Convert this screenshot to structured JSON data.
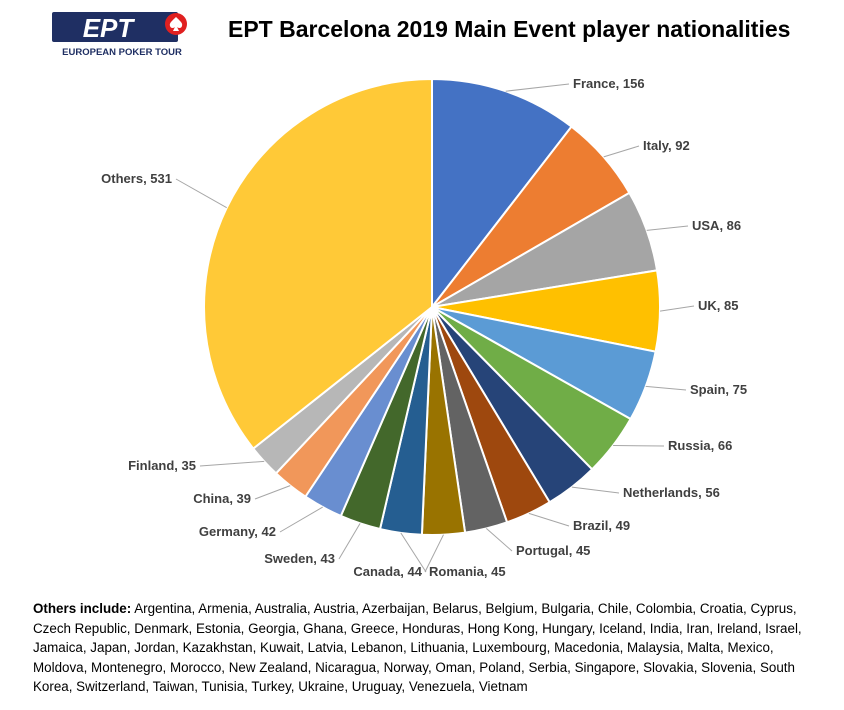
{
  "logo": {
    "mark": "EPT",
    "tagline": "EUROPEAN POKER TOUR",
    "colors": {
      "navy": "#1f2f63",
      "red": "#e02020"
    }
  },
  "footnote": {
    "label": "Others include:",
    "text": "Argentina, Armenia, Australia, Austria, Azerbaijan, Belarus, Belgium, Bulgaria, Chile, Colombia, Croatia, Cyprus, Czech Republic, Denmark, Estonia, Georgia, Ghana, Greece, Honduras, Hong Kong, Hungary, Iceland, India, Iran, Ireland, Israel, Jamaica, Japan, Jordan, Kazakhstan, Kuwait, Latvia, Lebanon, Lithuania, Luxembourg, Macedonia, Malaysia, Malta, Mexico, Moldova, Montenegro, Morocco, New Zealand, Nicaragua, Norway, Oman, Poland, Serbia, Singapore, Slovakia, Slovenia, South Korea, Switzerland, Taiwan, Tunisia, Turkey, Ukraine, Uruguay, Venezuela, Vietnam"
  },
  "chart_data": {
    "type": "pie",
    "title": "EPT Barcelona 2019 Main Event player nationalities",
    "start_angle_deg": 0,
    "direction": "clockwise",
    "legend": "none",
    "data_labels": "outside with leader lines",
    "slices": [
      {
        "label": "France",
        "value": 156,
        "text": "France, 156",
        "color": "#4472c4"
      },
      {
        "label": "Italy",
        "value": 92,
        "text": "Italy, 92",
        "color": "#ed7d31"
      },
      {
        "label": "USA",
        "value": 86,
        "text": "USA, 86",
        "color": "#a5a5a5"
      },
      {
        "label": "UK",
        "value": 85,
        "text": "UK, 85",
        "color": "#ffc000"
      },
      {
        "label": "Spain",
        "value": 75,
        "text": "Spain, 75",
        "color": "#5b9bd5"
      },
      {
        "label": "Russia",
        "value": 66,
        "text": "Russia, 66",
        "color": "#70ad47"
      },
      {
        "label": "Netherlands",
        "value": 56,
        "text": "Netherlands, 56",
        "color": "#264478"
      },
      {
        "label": "Brazil",
        "value": 49,
        "text": "Brazil, 49",
        "color": "#9e480e"
      },
      {
        "label": "Portugal",
        "value": 45,
        "text": "Portugal, 45",
        "color": "#636363"
      },
      {
        "label": "Romania",
        "value": 45,
        "text": "Romania, 45",
        "color": "#997300"
      },
      {
        "label": "Canada",
        "value": 44,
        "text": "Canada, 44",
        "color": "#255e91"
      },
      {
        "label": "Sweden",
        "value": 43,
        "text": "Sweden, 43",
        "color": "#43682b"
      },
      {
        "label": "Germany",
        "value": 42,
        "text": "Germany, 42",
        "color": "#698ed0"
      },
      {
        "label": "China",
        "value": 39,
        "text": "China, 39",
        "color": "#f1975a"
      },
      {
        "label": "Finland",
        "value": 35,
        "text": "Finland, 35",
        "color": "#b7b7b7"
      },
      {
        "label": "Others",
        "value": 531,
        "text": "Others, 531",
        "color": "#ffc937"
      }
    ]
  }
}
